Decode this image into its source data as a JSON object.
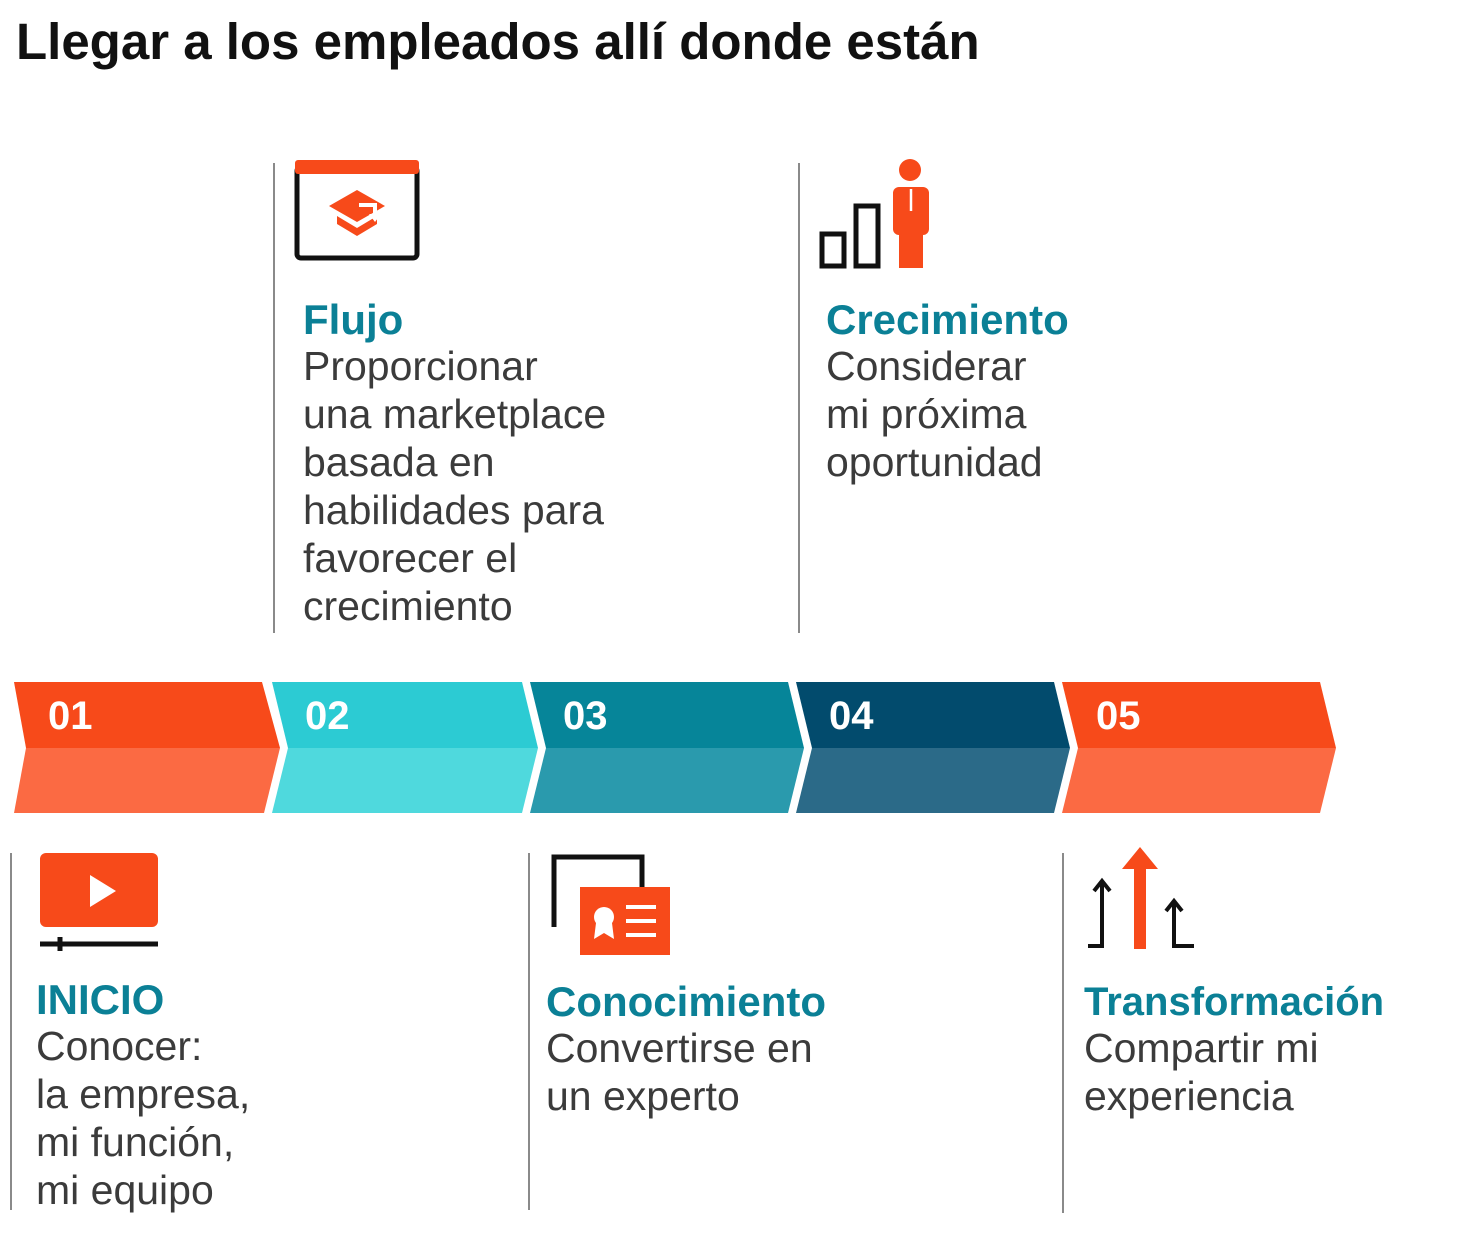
{
  "title": "Llegar a los empleados allí donde están",
  "colors": {
    "orange": "#f74a1a",
    "orange_light": "#fb6a43",
    "cyan": "#2ccbd3",
    "cyan_light": "#4fd9dd",
    "teal": "#068599",
    "teal_light": "#2a9aad",
    "navy": "#024b6d",
    "navy_light": "#2b6a88",
    "heading": "#0b8096"
  },
  "steps": [
    {
      "number": "01",
      "title": "INICIO",
      "icon": "video-play-icon",
      "lines": [
        "Conocer:",
        "la empresa,",
        "mi función,",
        "mi equipo"
      ]
    },
    {
      "number": "02",
      "title": "Flujo",
      "icon": "graduation-cap-window-icon",
      "lines": [
        "Proporcionar",
        "una marketplace",
        "basada en",
        "habilidades para",
        "favorecer el",
        "crecimiento"
      ]
    },
    {
      "number": "03",
      "title": "Conocimiento",
      "icon": "certificate-id-card-icon",
      "lines": [
        "Convertirse en",
        "un experto"
      ]
    },
    {
      "number": "04",
      "title": "Crecimiento",
      "icon": "person-growth-bars-icon",
      "lines": [
        "Considerar",
        "mi próxima",
        "oportunidad"
      ]
    },
    {
      "number": "05",
      "title": "Transformación",
      "icon": "up-arrows-icon",
      "lines": [
        "Compartir mi",
        "experiencia"
      ]
    }
  ]
}
